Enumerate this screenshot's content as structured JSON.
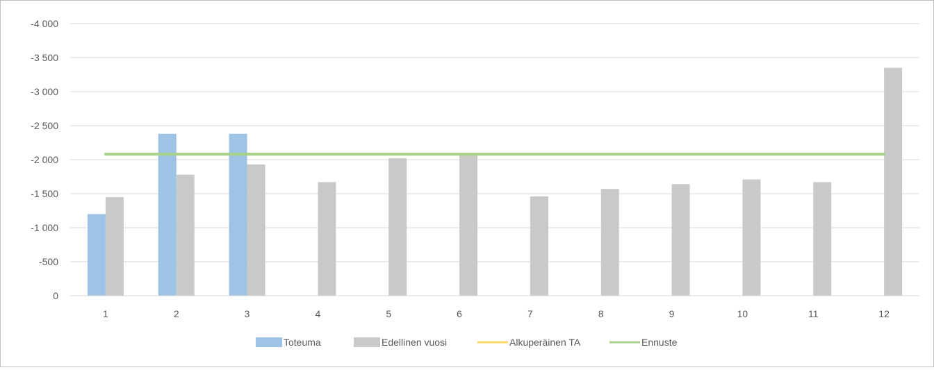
{
  "chart_data": {
    "type": "bar",
    "title": "",
    "xlabel": "",
    "ylabel": "",
    "categories": [
      "1",
      "2",
      "3",
      "4",
      "5",
      "6",
      "7",
      "8",
      "9",
      "10",
      "11",
      "12"
    ],
    "ylim": [
      0,
      -4000
    ],
    "y_ticks": [
      0,
      -500,
      -1000,
      -1500,
      -2000,
      -2500,
      -3000,
      -3500,
      -4000
    ],
    "y_tick_labels": [
      "0",
      "-500",
      "-1 000",
      "-1 500",
      "-2 000",
      "-2 500",
      "-3 000",
      "-3 500",
      "-4 000"
    ],
    "grid": "horizontal",
    "legend_position": "bottom",
    "series": [
      {
        "name": "Toteuma",
        "type": "bar",
        "color": "#9dc3e6",
        "values": [
          -1200,
          -2380,
          -2380,
          null,
          null,
          null,
          null,
          null,
          null,
          null,
          null,
          null
        ]
      },
      {
        "name": "Edellinen vuosi",
        "type": "bar",
        "color": "#c9c9c9",
        "values": [
          -1450,
          -1780,
          -1930,
          -1670,
          -2020,
          -2080,
          -1460,
          -1570,
          -1640,
          -1710,
          -1670,
          -3350
        ]
      },
      {
        "name": "Alkuperäinen TA",
        "type": "line",
        "color": "#ffd966",
        "values": [
          -2080,
          -2080,
          -2080,
          -2080,
          -2080,
          -2080,
          -2080,
          -2080,
          -2080,
          -2080,
          -2080,
          -2080
        ]
      },
      {
        "name": "Ennuste",
        "type": "line",
        "color": "#a9d18e",
        "values": [
          -2080,
          -2080,
          -2080,
          -2080,
          -2080,
          -2080,
          -2080,
          -2080,
          -2080,
          -2080,
          -2080,
          -2080
        ]
      }
    ]
  }
}
